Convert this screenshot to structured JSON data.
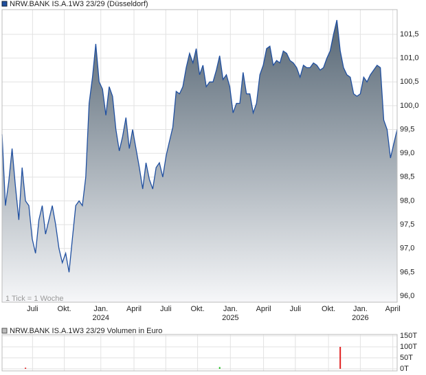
{
  "chart_data": [
    {
      "type": "area",
      "title": "NRW.BANK IS.A.1W3 23/29 (Düsseldorf)",
      "note": "1 Tick = 1 Woche",
      "color": "#1f4fa0",
      "values": [
        99.4,
        97.9,
        98.4,
        99.1,
        98.3,
        97.6,
        98.7,
        98.0,
        97.9,
        97.2,
        96.9,
        97.6,
        97.9,
        97.3,
        97.6,
        97.9,
        97.5,
        97.0,
        96.7,
        96.9,
        96.5,
        97.2,
        97.9,
        98.0,
        97.9,
        98.5,
        100.05,
        100.6,
        101.3,
        100.5,
        100.35,
        99.8,
        100.4,
        100.2,
        99.5,
        99.05,
        99.35,
        99.75,
        99.1,
        99.5,
        99.1,
        98.7,
        98.25,
        98.8,
        98.45,
        98.25,
        98.7,
        98.8,
        98.5,
        98.95,
        99.25,
        99.55,
        100.3,
        100.25,
        100.4,
        100.8,
        101.1,
        100.9,
        101.2,
        100.65,
        100.85,
        100.4,
        100.5,
        100.5,
        100.75,
        101.05,
        100.55,
        100.65,
        100.4,
        99.85,
        100.05,
        100.05,
        100.7,
        100.25,
        100.25,
        99.85,
        100.05,
        100.65,
        100.85,
        101.2,
        101.25,
        100.85,
        100.95,
        100.9,
        101.15,
        101.1,
        100.95,
        100.9,
        100.8,
        100.6,
        100.85,
        100.8,
        100.8,
        100.9,
        100.85,
        100.75,
        100.8,
        101.0,
        101.15,
        101.5,
        101.8,
        101.15,
        100.8,
        100.65,
        100.6,
        100.25,
        100.2,
        100.25,
        100.6,
        100.5,
        100.65,
        100.75,
        100.85,
        100.8,
        99.7,
        99.5,
        98.9,
        99.2,
        99.5
      ],
      "xlim": [
        0,
        118
      ],
      "xticks": [
        {
          "value": 9.1,
          "label": "Juli"
        },
        {
          "value": 18.6,
          "label": "Okt."
        },
        {
          "value": 29.5,
          "label": "Jan."
        },
        {
          "value": 39.4,
          "label": "April"
        },
        {
          "value": 48.9,
          "label": "Juli"
        },
        {
          "value": 58.4,
          "label": "Okt."
        },
        {
          "value": 68.2,
          "label": "Jan."
        },
        {
          "value": 78.1,
          "label": "April"
        },
        {
          "value": 87.6,
          "label": "Juli"
        },
        {
          "value": 97.5,
          "label": "Okt."
        },
        {
          "value": 107,
          "label": "Jan."
        },
        {
          "value": 116.7,
          "label": "April"
        }
      ],
      "year_labels": [
        {
          "value": 29.5,
          "label": "2024"
        },
        {
          "value": 68.2,
          "label": "2025"
        },
        {
          "value": 107,
          "label": "2026"
        }
      ],
      "ylim": [
        95.87,
        102.02
      ],
      "yticks": [
        {
          "value": 96.0,
          "label": "96,0"
        },
        {
          "value": 96.5,
          "label": "96,5"
        },
        {
          "value": 97.0,
          "label": "97,0"
        },
        {
          "value": 97.5,
          "label": "97,5"
        },
        {
          "value": 98.0,
          "label": "98,0"
        },
        {
          "value": 98.5,
          "label": "98,5"
        },
        {
          "value": 99.0,
          "label": "99,0"
        },
        {
          "value": 99.5,
          "label": "99,5"
        },
        {
          "value": 100.0,
          "label": "100,0"
        },
        {
          "value": 100.5,
          "label": "100,5"
        },
        {
          "value": 101.0,
          "label": "101,0"
        },
        {
          "value": 101.5,
          "label": "101,5"
        }
      ],
      "grid": true
    },
    {
      "type": "bar",
      "title": "NRW.BANK IS.A.1W3 23/29 Volumen in Euro",
      "x": [
        7,
        65,
        101
      ],
      "values": [
        5000,
        8000,
        100000
      ],
      "colors": [
        "#e02020",
        "#20c020",
        "#e02020"
      ],
      "xlim": [
        0,
        118
      ],
      "ylim": [
        0,
        150000
      ],
      "yticks": [
        {
          "value": 0,
          "label": "0T"
        },
        {
          "value": 50000,
          "label": "50T"
        },
        {
          "value": 100000,
          "label": "100T"
        },
        {
          "value": 150000,
          "label": "150T"
        }
      ],
      "grid": true
    }
  ]
}
